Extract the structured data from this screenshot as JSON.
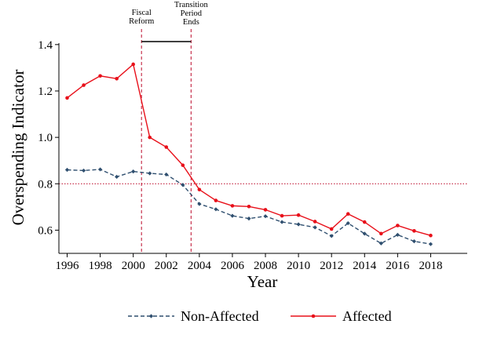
{
  "chart_data": {
    "type": "line",
    "xlabel": "Year",
    "ylabel": "Overspending Indicator",
    "xlim": [
      1995.5,
      2019.5
    ],
    "ylim": [
      0.5,
      1.44
    ],
    "xticks": [
      1996,
      1998,
      2000,
      2002,
      2004,
      2006,
      2008,
      2010,
      2012,
      2014,
      2016,
      2018
    ],
    "xtick_labels": [
      "1996",
      "1998",
      "2000",
      "2002",
      "2004",
      "2006",
      "2008",
      "2010",
      "2012",
      "2014",
      "2016",
      "2018"
    ],
    "yticks": [
      0.6,
      0.8,
      1.0,
      1.2,
      1.4
    ],
    "ytick_labels": [
      "0.6",
      "0.8",
      "1.0",
      "1.2",
      "1.4"
    ],
    "x": [
      1996,
      1997,
      1998,
      1999,
      2000,
      2001,
      2002,
      2003,
      2004,
      2005,
      2006,
      2007,
      2008,
      2009,
      2010,
      2011,
      2012,
      2013,
      2014,
      2015,
      2016,
      2017,
      2018
    ],
    "series": [
      {
        "name": "Non-Affected",
        "color": "#2f4f6f",
        "dashed": true,
        "values": [
          0.86,
          0.857,
          0.862,
          0.83,
          0.853,
          0.845,
          0.84,
          0.795,
          0.713,
          0.69,
          0.662,
          0.65,
          0.66,
          0.635,
          0.625,
          0.612,
          0.575,
          0.63,
          0.585,
          0.543,
          0.58,
          0.552,
          0.54
        ]
      },
      {
        "name": "Affected",
        "color": "#e8101a",
        "dashed": false,
        "values": [
          1.17,
          1.225,
          1.265,
          1.253,
          1.315,
          1.0,
          0.958,
          0.88,
          0.775,
          0.728,
          0.705,
          0.702,
          0.688,
          0.662,
          0.665,
          0.637,
          0.605,
          0.67,
          0.635,
          0.585,
          0.62,
          0.597,
          0.577
        ]
      }
    ],
    "reference_lines": [
      {
        "orientation": "horizontal",
        "value": 0.8,
        "color": "#c2203e",
        "style": "dotted"
      },
      {
        "orientation": "vertical",
        "value": 2000.5,
        "color": "#c2203e",
        "style": "dashed"
      },
      {
        "orientation": "vertical",
        "value": 2003.5,
        "color": "#c2203e",
        "style": "dashed"
      }
    ],
    "annotations": [
      {
        "lines": [
          "Fiscal",
          "Reform"
        ],
        "x": 2000.5
      },
      {
        "lines": [
          "Transition",
          "Period",
          "Ends"
        ],
        "x": 2003.5
      }
    ],
    "period_bracket": {
      "from": 2000.5,
      "to": 2003.5
    },
    "legend": {
      "placement": "bottom-center",
      "entries": [
        "Non-Affected",
        "Affected"
      ]
    }
  }
}
